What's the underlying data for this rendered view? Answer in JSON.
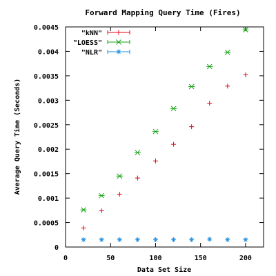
{
  "chart_data": {
    "type": "scatter",
    "title": "Forward Mapping Query Time (Fires)",
    "xlabel": "Data Set Size",
    "ylabel": "Average Query Time (Seconds)",
    "xlim": [
      0,
      220
    ],
    "ylim": [
      0,
      0.0045
    ],
    "x_ticks": [
      0,
      50,
      100,
      150,
      200
    ],
    "x_tick_labels": [
      "0",
      "50",
      "100",
      "150",
      "200"
    ],
    "y_ticks": [
      0,
      0.0005,
      0.001,
      0.0015,
      0.002,
      0.0025,
      0.003,
      0.0035,
      0.004,
      0.0045
    ],
    "y_tick_labels": [
      "0",
      "0.0005",
      "0.001",
      "0.0015",
      "0.002",
      "0.0025",
      "0.003",
      "0.0035",
      "0.004",
      "0.0045"
    ],
    "grid": false,
    "legend_position": "top-left",
    "x": [
      20,
      40,
      60,
      80,
      100,
      120,
      140,
      160,
      180,
      200
    ],
    "series": [
      {
        "name": "\"kNN\"",
        "color": "#e8001c",
        "marker": "plus-errorbar",
        "values": [
          0.00039,
          0.00074,
          0.00108,
          0.00141,
          0.00176,
          0.0021,
          0.00246,
          0.00294,
          0.00329,
          0.00352
        ]
      },
      {
        "name": "\"LOESS\"",
        "color": "#17a317",
        "marker": "cross-errorbar",
        "values": [
          0.00076,
          0.00105,
          0.00145,
          0.00193,
          0.00236,
          0.00283,
          0.00328,
          0.00369,
          0.00398,
          0.00444
        ]
      },
      {
        "name": "\"NLR\"",
        "color": "#1f8fe0",
        "marker": "star-errorbar",
        "values": [
          0.00015,
          0.00015,
          0.00015,
          0.00015,
          0.00015,
          0.00015,
          0.00015,
          0.00016,
          0.00015,
          0.00015
        ]
      }
    ]
  }
}
